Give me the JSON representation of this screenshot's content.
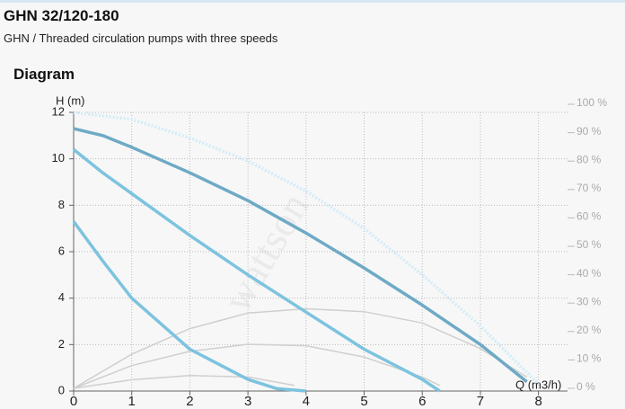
{
  "header": {
    "title": "GHN 32/120-180",
    "subtitle": "GHN / Threaded circulation pumps with three speeds",
    "section": "Diagram"
  },
  "chart_data": {
    "type": "line",
    "watermark": "wattson",
    "x_label": "Q (m3/h)",
    "y_label": "H (m)",
    "xlim": [
      0,
      8.5
    ],
    "xticks": [
      0,
      1,
      2,
      3,
      4,
      5,
      6,
      7,
      8
    ],
    "ylim": [
      0,
      12
    ],
    "yticks": [
      0,
      2,
      4,
      6,
      8,
      10,
      12
    ],
    "y2lim": [
      0,
      100
    ],
    "y2ticks": [
      {
        "value": 0,
        "label": "0 %"
      },
      {
        "value": 10,
        "label": "10 %"
      },
      {
        "value": 20,
        "label": "20 %"
      },
      {
        "value": 30,
        "label": "30 %"
      },
      {
        "value": 40,
        "label": "40 %"
      },
      {
        "value": 50,
        "label": "50 %"
      },
      {
        "value": 60,
        "label": "60 %"
      },
      {
        "value": 70,
        "label": "70 %"
      },
      {
        "value": 80,
        "label": "80 %"
      },
      {
        "value": 90,
        "label": "90 %"
      },
      {
        "value": 100,
        "label": "100 %"
      }
    ],
    "grid": true,
    "series": [
      {
        "color": "#d2ecf7",
        "dashed": true,
        "x": [
          0,
          1,
          2,
          3,
          4,
          5,
          6,
          7,
          8
        ],
        "values": [
          12,
          11.7,
          10.9,
          9.9,
          8.6,
          7,
          5,
          2.8,
          0.3
        ]
      },
      {
        "color": "#cfcfcf",
        "axis": "y2",
        "x": [
          0,
          1,
          2,
          3,
          4,
          5,
          6,
          7,
          7.8
        ],
        "values": [
          0,
          12,
          21,
          26.5,
          28,
          27,
          23,
          14,
          4
        ]
      },
      {
        "color": "#cfcfcf",
        "axis": "y2",
        "x": [
          0,
          1,
          2,
          3,
          4,
          5,
          6,
          6.3
        ],
        "values": [
          0,
          8,
          13,
          15.5,
          15,
          11,
          4,
          1
        ]
      },
      {
        "color": "#cfcfcf",
        "axis": "y2",
        "x": [
          0,
          1,
          2,
          3,
          3.8
        ],
        "values": [
          0,
          3,
          4.5,
          4,
          1
        ]
      },
      {
        "color": "#6eaac6",
        "x": [
          0,
          0.5,
          1,
          2,
          3,
          4,
          5,
          6,
          7,
          7.8
        ],
        "values": [
          11.3,
          11,
          10.5,
          9.4,
          8.2,
          6.8,
          5.3,
          3.7,
          2,
          0.4
        ]
      },
      {
        "color": "#7cc3df",
        "x": [
          0,
          0.5,
          1,
          2,
          3,
          4,
          5,
          6,
          6.3
        ],
        "values": [
          10.4,
          9.4,
          8.5,
          6.7,
          5,
          3.4,
          1.8,
          0.5,
          0
        ]
      },
      {
        "color": "#7cc3df",
        "x": [
          0,
          0.5,
          1,
          2,
          3,
          3.5,
          4
        ],
        "values": [
          7.3,
          5.6,
          4,
          1.8,
          0.5,
          0.1,
          0
        ]
      }
    ]
  }
}
